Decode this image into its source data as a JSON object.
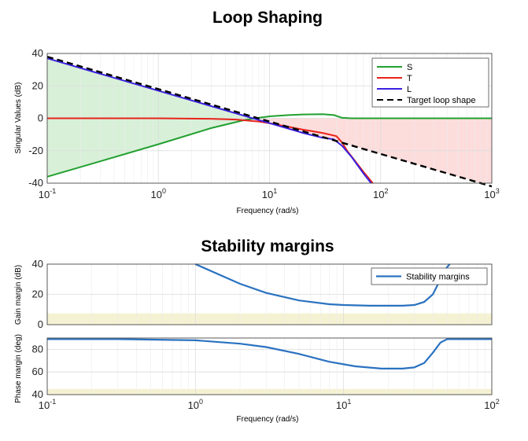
{
  "chart_data": [
    {
      "type": "line",
      "title": "Loop Shaping",
      "xlabel": "Frequency (rad/s)",
      "ylabel": "Singular Values (dB)",
      "x_scale": "log",
      "xlim": [
        0.1,
        1000
      ],
      "ylim": [
        -40,
        40
      ],
      "xticks": [
        0.1,
        1,
        10,
        100,
        1000
      ],
      "xtick_labels": [
        {
          "base": "10",
          "exp": "-1"
        },
        {
          "base": "10",
          "exp": "0"
        },
        {
          "base": "10",
          "exp": "1"
        },
        {
          "base": "10",
          "exp": "2"
        },
        {
          "base": "10",
          "exp": "3"
        }
      ],
      "yticks": [
        40,
        20,
        0,
        -20,
        -40
      ],
      "grid": true,
      "legend_position": "top-right",
      "shaded_regions": [
        {
          "label": "",
          "color": "#d8f0d8",
          "description_x": [
            0.1,
            8
          ]
        },
        {
          "label": "",
          "color": "#fddcdc",
          "description_x": [
            8,
            1000
          ]
        }
      ],
      "series": [
        {
          "name": "S",
          "color": "#22a030",
          "style": "solid",
          "x": [
            0.1,
            0.3,
            1,
            3,
            6,
            8,
            10,
            15,
            20,
            30,
            38,
            45,
            55,
            100,
            1000
          ],
          "y": [
            -36,
            -26.5,
            -16,
            -6,
            -1,
            0.3,
            1.2,
            2.0,
            2.4,
            2.5,
            2.0,
            0.3,
            0,
            0,
            0
          ]
        },
        {
          "name": "T",
          "color": "#e8231b",
          "style": "solid",
          "x": [
            0.1,
            1,
            3,
            5,
            8,
            10,
            20,
            30,
            40,
            45,
            50,
            70,
            85
          ],
          "y": [
            0,
            0,
            -0.3,
            -0.8,
            -2,
            -3,
            -7,
            -9,
            -11,
            -15,
            -20,
            -33,
            -40
          ]
        },
        {
          "name": "L",
          "color": "#3b20e0",
          "style": "solid",
          "x": [
            0.1,
            1,
            10,
            20,
            30,
            38,
            45,
            55,
            70,
            82
          ],
          "y": [
            37,
            17,
            -3,
            -9,
            -12,
            -13,
            -17,
            -24,
            -34,
            -40
          ]
        },
        {
          "name": "Target loop shape",
          "color": "#000000",
          "style": "dashed",
          "x": [
            0.1,
            1000
          ],
          "y": [
            38,
            -42
          ]
        }
      ]
    },
    {
      "type": "line",
      "title": "Stability margins",
      "xlabel": "Frequency  (rad/s)",
      "x_scale": "log",
      "xlim": [
        0.1,
        100
      ],
      "xticks": [
        0.1,
        1,
        10,
        100
      ],
      "xtick_labels": [
        {
          "base": "10",
          "exp": "-1"
        },
        {
          "base": "10",
          "exp": "0"
        },
        {
          "base": "10",
          "exp": "1"
        },
        {
          "base": "10",
          "exp": "2"
        }
      ],
      "legend_position": "top-right",
      "subplots": [
        {
          "ylabel": "Gain margin (dB)",
          "ylim": [
            0,
            40
          ],
          "yticks": [
            40,
            20,
            0
          ],
          "band": {
            "color": "#f5f2d4",
            "range": [
              0,
              7.5
            ]
          },
          "series": [
            {
              "name": "Stability margins",
              "color": "#2a72c0",
              "x": [
                1,
                2,
                3,
                5,
                8,
                10,
                15,
                20,
                25,
                30,
                35,
                40,
                45,
                48,
                52
              ],
              "y": [
                40,
                27,
                21,
                16,
                13.5,
                13,
                12.5,
                12.5,
                12.5,
                13,
                15,
                20,
                30,
                36,
                40
              ]
            }
          ]
        },
        {
          "ylabel": "Phase margin (deg)",
          "ylim": [
            40,
            90
          ],
          "yticks": [
            80,
            60,
            40
          ],
          "band": {
            "color": "#f5f2d4",
            "range": [
              40,
              45
            ]
          },
          "series": [
            {
              "name": "Stability margins",
              "color": "#2a72c0",
              "x": [
                0.1,
                0.3,
                1,
                2,
                3,
                5,
                8,
                12,
                18,
                25,
                30,
                35,
                40,
                45,
                50,
                60,
                100
              ],
              "y": [
                89,
                89,
                88,
                85,
                82,
                76,
                69,
                65,
                63,
                63,
                64,
                68,
                77,
                86,
                89,
                89,
                89
              ]
            }
          ]
        }
      ]
    }
  ]
}
